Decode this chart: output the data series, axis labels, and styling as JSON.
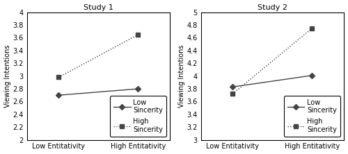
{
  "study1": {
    "title": "Study 1",
    "x_labels": [
      "Low Entitativity",
      "High Entitativity"
    ],
    "low_sincerity": [
      2.7,
      2.8
    ],
    "high_sincerity": [
      2.98,
      3.65
    ],
    "ylim": [
      2.0,
      4.0
    ],
    "yticks": [
      2.0,
      2.2,
      2.4,
      2.6,
      2.8,
      3.0,
      3.2,
      3.4,
      3.6,
      3.8,
      4.0
    ],
    "ylabel": "Viewing Intentions"
  },
  "study2": {
    "title": "Study 2",
    "x_labels": [
      "Low Entitativity",
      "High Entitativity"
    ],
    "low_sincerity": [
      3.83,
      4.01
    ],
    "high_sincerity": [
      3.72,
      4.75
    ],
    "ylim": [
      3.0,
      5.0
    ],
    "yticks": [
      3.0,
      3.2,
      3.4,
      3.6,
      3.8,
      4.0,
      4.2,
      4.4,
      4.6,
      4.8,
      5.0
    ],
    "ylabel": "Viewing Intentions"
  },
  "legend_labels": [
    "Low\nSincerity",
    "High\nSincerity"
  ],
  "line_color": "#444444",
  "low_marker": "D",
  "high_marker": "s",
  "low_linestyle": "-",
  "high_linestyle": ":",
  "markersize": 4,
  "linewidth": 1.0,
  "fontsize_title": 8,
  "fontsize_axis": 7,
  "fontsize_tick": 7,
  "fontsize_legend": 7
}
